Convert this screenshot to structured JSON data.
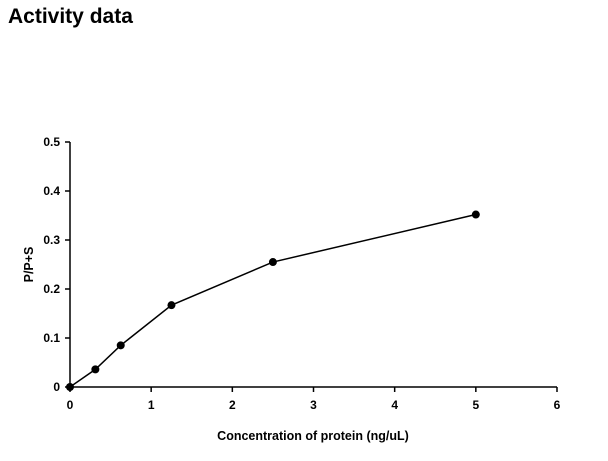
{
  "page": {
    "title": "Activity data"
  },
  "chart_data": {
    "type": "line",
    "title": "",
    "xlabel": "Concentration of protein (ng/uL)",
    "ylabel": "P/P+S",
    "xlim": [
      0,
      6
    ],
    "ylim": [
      0,
      0.5
    ],
    "x_ticks": [
      0,
      1,
      2,
      3,
      4,
      5,
      6
    ],
    "y_ticks": [
      0,
      0.1,
      0.2,
      0.3,
      0.4,
      0.5
    ],
    "grid": false,
    "series": [
      {
        "x": [
          0,
          0.3125,
          0.625,
          1.25,
          2.5,
          5
        ],
        "y": [
          0.0,
          0.036,
          0.085,
          0.167,
          0.255,
          0.352
        ],
        "color": "#000000",
        "marker": "circle"
      }
    ]
  }
}
